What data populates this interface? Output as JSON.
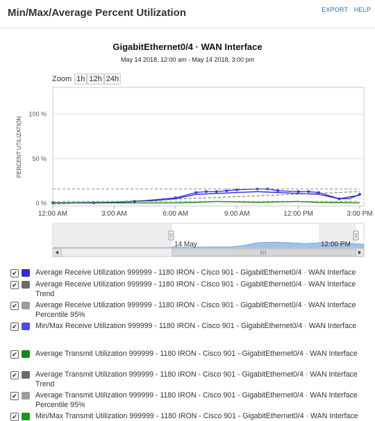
{
  "header": {
    "title": "Min/Max/Average Percent Utilization",
    "export_label": "EXPORT",
    "help_label": "HELP"
  },
  "chart_header": {
    "title": "GigabitEthernet0/4 · WAN Interface",
    "subtitle": "May 14 2018, 12:00 am - May 14 2018, 3:00 pm"
  },
  "zoom": {
    "label": "Zoom",
    "options": [
      "1h",
      "12h",
      "24h"
    ]
  },
  "chart_data": {
    "type": "line",
    "ylabel": "PERCENT UTILIZATION",
    "ylim": [
      0,
      130
    ],
    "y_ticks": [
      "0 %",
      "50 %",
      "100 %"
    ],
    "x_ticks": [
      "12:00 AM",
      "3:00 AM",
      "6:00 AM",
      "9:00 AM",
      "12:00 PM",
      "3:00 PM"
    ],
    "x_range_hours": [
      0,
      15
    ],
    "grid": true,
    "series": [
      {
        "name": "Min/Max Receive Utilization",
        "color": "#3a3af0",
        "x": [
          0,
          1,
          2,
          3,
          4,
          5,
          6,
          7,
          7.5,
          8,
          8.5,
          9,
          10,
          10.5,
          11,
          12,
          12.5,
          13,
          14,
          14.5,
          15
        ],
        "y": [
          0.5,
          0.5,
          0.5,
          1,
          2,
          4,
          6,
          12,
          13,
          13,
          14,
          15,
          16,
          16,
          14,
          13,
          13,
          12,
          5,
          5,
          10
        ]
      },
      {
        "name": "Average Receive Utilization",
        "color": "#2a2ac0",
        "x": [
          0,
          3,
          5,
          6,
          7,
          8,
          9,
          10,
          11,
          12,
          13,
          14,
          15
        ],
        "y": [
          0.5,
          1,
          3,
          5,
          10,
          11,
          12,
          13,
          12,
          11,
          10,
          5,
          9
        ]
      },
      {
        "name": "Average Receive Utilization Trend",
        "color": "#666666",
        "x": [
          0,
          15
        ],
        "y": [
          -1,
          13
        ]
      },
      {
        "name": "Average Receive Utilization Percentile 95%",
        "color": "#888888",
        "x": [
          0,
          15
        ],
        "y": [
          16,
          16
        ]
      },
      {
        "name": "Average Transmit Utilization Percentile 95%",
        "color": "#999999",
        "x": [
          0,
          15
        ],
        "y": [
          2,
          2
        ]
      },
      {
        "name": "Average Transmit Utilization",
        "color": "#1a8a1a",
        "x": [
          0,
          3,
          6,
          7,
          8,
          9,
          10,
          11,
          12,
          13,
          14,
          15
        ],
        "y": [
          0.2,
          0.3,
          0.5,
          1,
          2,
          1.5,
          1,
          1.5,
          2,
          1,
          0.8,
          0.5
        ]
      }
    ]
  },
  "navigator": {
    "label_left": "14 May",
    "label_right": "12:00 PM"
  },
  "legend": [
    {
      "label": "Average Receive Utilization 999999 - 1180 IRON - Cisco 901 - GigabitEthernet0/4 · WAN Interface",
      "color": "#2d2ddb"
    },
    {
      "label": "Average Receive Utilization 999999 - 1180 IRON - Cisco 901 - GigabitEthernet0/4 · WAN Interface Trend",
      "color": "#6b6b6b"
    },
    {
      "label": "Average Receive Utilization 999999 - 1180 IRON - Cisco 901 - GigabitEthernet0/4 · WAN Interface Percentile 95%",
      "color": "#9c9c9c"
    },
    {
      "label": "Min/Max Receive Utilization 999999 - 1180 IRON - Cisco 901 - GigabitEthernet0/4 · WAN Interface",
      "color": "#4a4af5"
    },
    {
      "label": "Average Transmit Utilization 999999 - 1180 IRON - Cisco 901 - GigabitEthernet0/4 · WAN Interface",
      "color": "#0f8c0f"
    },
    {
      "label": "Average Transmit Utilization 999999 - 1180 IRON - Cisco 901 - GigabitEthernet0/4 · WAN Interface Trend",
      "color": "#6b6b6b"
    },
    {
      "label": "Average Transmit Utilization 999999 - 1180 IRON - Cisco 901 - GigabitEthernet0/4 · WAN Interface Percentile 95%",
      "color": "#9c9c9c"
    },
    {
      "label": "Min/Max Transmit Utilization 999999 - 1180 IRON - Cisco 901 - GigabitEthernet0/4 · WAN Interface",
      "color": "#1a9a1a"
    }
  ]
}
